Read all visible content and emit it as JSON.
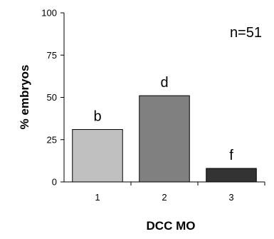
{
  "chart_data": {
    "type": "bar",
    "categories": [
      "1",
      "2",
      "3"
    ],
    "values": [
      31,
      51,
      8
    ],
    "bar_labels": [
      "b",
      "d",
      "f"
    ],
    "bar_colors": [
      "#c0c0c0",
      "#808080",
      "#333333"
    ],
    "xlabel": "DCC MO",
    "ylabel": "% embryos",
    "ylim": [
      0,
      100
    ],
    "yticks": [
      0,
      25,
      50,
      75,
      100
    ],
    "annotation": "n=51",
    "grid": false
  }
}
